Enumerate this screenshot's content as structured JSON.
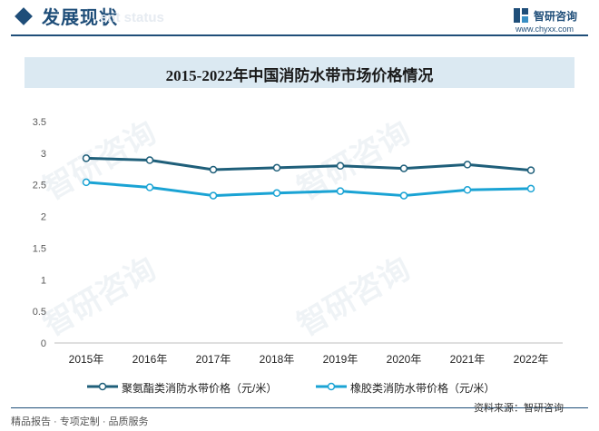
{
  "header": {
    "section_title": "发展现状",
    "ghost_subtitle": "ent status",
    "brand_name": "智研咨询",
    "brand_url": "www.chyxx.com"
  },
  "chart_data": {
    "type": "line",
    "title": "2015-2022年中国消防水带市场价格情况",
    "categories": [
      "2015年",
      "2016年",
      "2017年",
      "2018年",
      "2019年",
      "2020年",
      "2021年",
      "2022年"
    ],
    "y_ticks": [
      "0",
      "0.5",
      "1",
      "1.5",
      "2",
      "2.5",
      "3",
      "3.5"
    ],
    "ylim": [
      0,
      3.5
    ],
    "grid": false,
    "legend_position": "bottom",
    "series": [
      {
        "name": "聚氨酯类消防水带价格（元/米）",
        "color": "#1f5f7a",
        "values": [
          2.92,
          2.89,
          2.74,
          2.77,
          2.8,
          2.76,
          2.82,
          2.73
        ]
      },
      {
        "name": "橡胶类消防水带价格（元/米）",
        "color": "#1aa3d4",
        "values": [
          2.54,
          2.46,
          2.33,
          2.37,
          2.4,
          2.33,
          2.42,
          2.44
        ]
      }
    ]
  },
  "watermark": "智研咨询",
  "footer": {
    "left": "精品报告 · 专项定制 · 品质服务",
    "right": "资料来源：智研咨询"
  }
}
